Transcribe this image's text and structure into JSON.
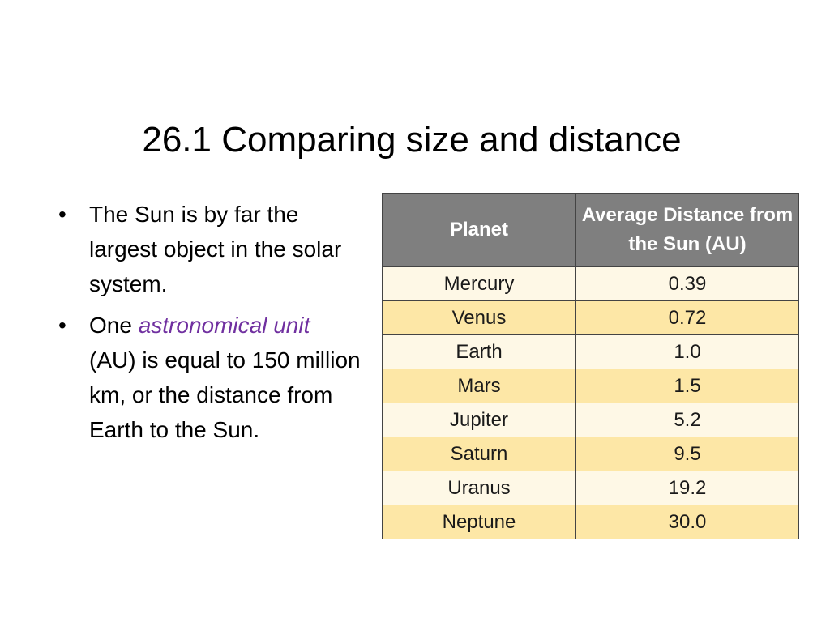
{
  "title": "26.1 Comparing size and distance",
  "bullets": [
    {
      "parts": [
        {
          "text": "The Sun is by far the largest object in the solar system."
        }
      ]
    },
    {
      "parts": [
        {
          "text": "One "
        },
        {
          "text": "astronomical unit",
          "emphasis": true
        },
        {
          "text": " (AU) is equal to 150 million km, or the distance from Earth to the Sun."
        }
      ]
    }
  ],
  "table": {
    "header": [
      "Planet",
      "Average Distance from the Sun (AU)"
    ],
    "rows": [
      [
        "Mercury",
        "0.39"
      ],
      [
        "Venus",
        "0.72"
      ],
      [
        "Earth",
        "1.0"
      ],
      [
        "Mars",
        "1.5"
      ],
      [
        "Jupiter",
        "5.2"
      ],
      [
        "Saturn",
        "9.5"
      ],
      [
        "Uranus",
        "19.2"
      ],
      [
        "Neptune",
        "30.0"
      ]
    ]
  }
}
